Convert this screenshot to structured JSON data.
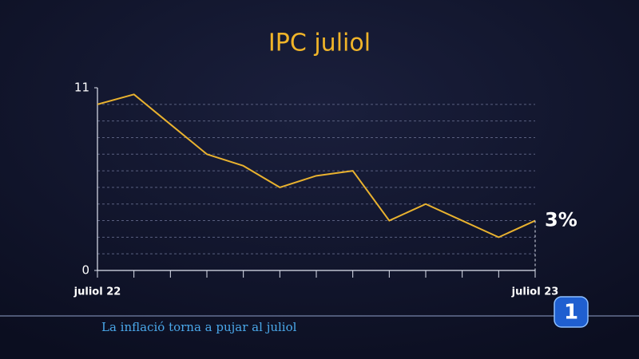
{
  "chart_data": {
    "type": "line",
    "title": "IPC juliol",
    "categories": [
      "juliol 22",
      null,
      null,
      null,
      null,
      null,
      null,
      null,
      null,
      null,
      null,
      null,
      "juliol 23"
    ],
    "series": [
      {
        "color": "#e9b22f",
        "values": [
          10.0,
          10.6,
          8.8,
          7.0,
          6.3,
          5.0,
          5.7,
          6.0,
          3.0,
          4.0,
          3.0,
          2.0,
          3.0
        ],
        "value_labels": [
          null,
          null,
          null,
          null,
          null,
          null,
          null,
          null,
          null,
          null,
          null,
          null,
          "3%"
        ]
      }
    ],
    "ylim": [
      0,
      11
    ],
    "yticks": [
      0,
      11
    ],
    "minor_yticks": [
      1,
      2,
      3,
      4,
      5,
      6,
      7,
      8,
      9,
      10
    ],
    "grid": true
  },
  "caption": "La inflació torna a pujar al juliol",
  "logo": "1"
}
